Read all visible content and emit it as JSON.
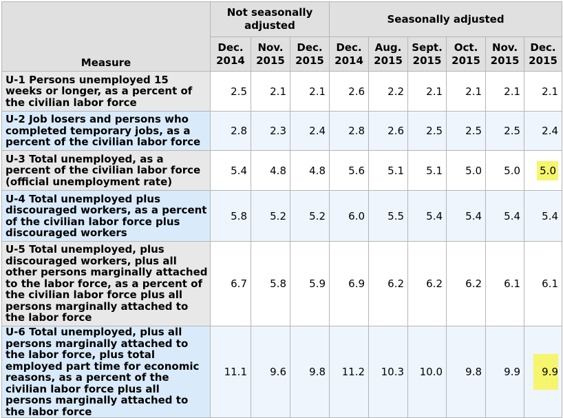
{
  "table": {
    "measure_header": "Measure",
    "group_headers": {
      "nsa": "Not seasonally adjusted",
      "sa": "Seasonally adjusted"
    },
    "columns": [
      {
        "month": "Dec.",
        "year": "2014"
      },
      {
        "month": "Nov.",
        "year": "2015"
      },
      {
        "month": "Dec.",
        "year": "2015"
      },
      {
        "month": "Dec.",
        "year": "2014"
      },
      {
        "month": "Aug.",
        "year": "2015"
      },
      {
        "month": "Sept.",
        "year": "2015"
      },
      {
        "month": "Oct.",
        "year": "2015"
      },
      {
        "month": "Nov.",
        "year": "2015"
      },
      {
        "month": "Dec.",
        "year": "2015"
      }
    ],
    "rows": [
      {
        "measure": "U-1 Persons unemployed 15 weeks or longer, as a percent of the civilian labor force",
        "values": [
          "2.5",
          "2.1",
          "2.1",
          "2.6",
          "2.2",
          "2.1",
          "2.1",
          "2.1",
          "2.1"
        ]
      },
      {
        "measure": "U-2 Job losers and persons who completed temporary jobs, as a percent of the civilian labor force",
        "values": [
          "2.8",
          "2.3",
          "2.4",
          "2.8",
          "2.6",
          "2.5",
          "2.5",
          "2.5",
          "2.4"
        ]
      },
      {
        "measure": "U-3 Total unemployed, as a percent of the civilian labor force (official unemployment rate)",
        "values": [
          "5.4",
          "4.8",
          "4.8",
          "5.6",
          "5.1",
          "5.1",
          "5.0",
          "5.0",
          "5.0"
        ]
      },
      {
        "measure": "U-4 Total unemployed plus discouraged workers, as a percent of the civilian labor force plus discouraged workers",
        "values": [
          "5.8",
          "5.2",
          "5.2",
          "6.0",
          "5.5",
          "5.4",
          "5.4",
          "5.4",
          "5.4"
        ]
      },
      {
        "measure": "U-5 Total unemployed, plus discouraged workers, plus all other persons marginally attached to the labor force, as a percent of the civilian labor force plus all persons marginally attached to the labor force",
        "values": [
          "6.7",
          "5.8",
          "5.9",
          "6.9",
          "6.2",
          "6.2",
          "6.2",
          "6.1",
          "6.1"
        ]
      },
      {
        "measure": "U-6 Total unemployed, plus all persons marginally attached to the labor force, plus total employed part time for economic reasons, as a percent of the civilian labor force plus all persons marginally attached to the labor force",
        "values": [
          "11.1",
          "9.6",
          "9.8",
          "11.2",
          "10.3",
          "10.0",
          "9.8",
          "9.9",
          "9.9"
        ]
      }
    ],
    "highlight_color": "#f6f56e"
  }
}
